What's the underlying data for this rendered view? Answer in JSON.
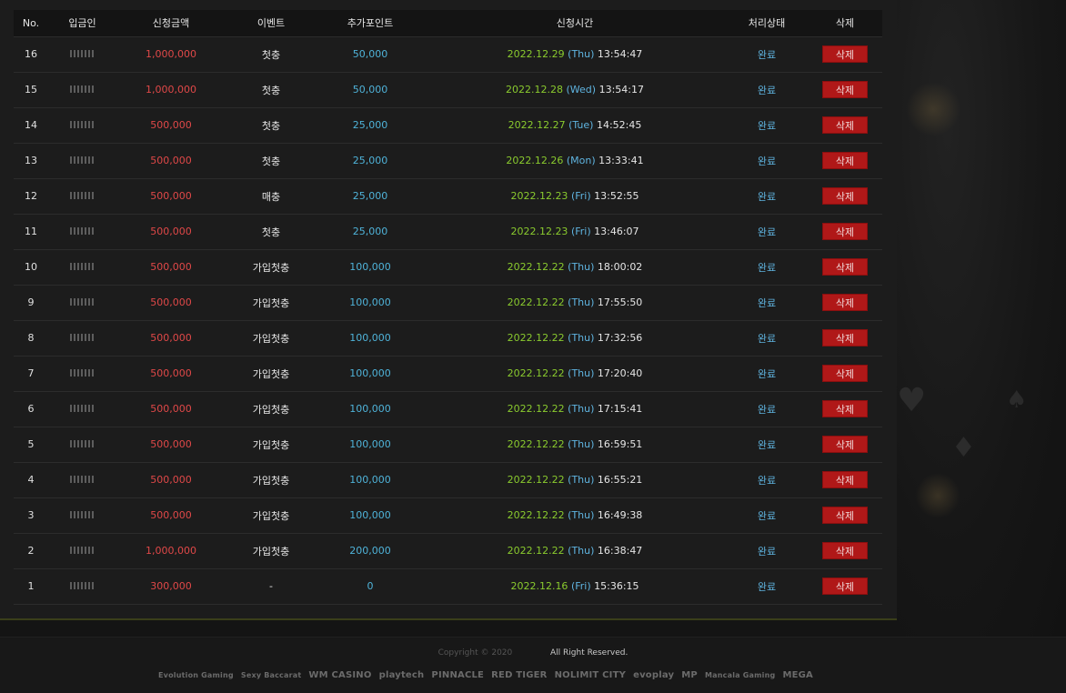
{
  "table": {
    "headers": {
      "no": "No.",
      "depositor": "입금인",
      "amount": "신청금액",
      "event": "이벤트",
      "bonus": "추가포인트",
      "requested_at": "신청시간",
      "status": "처리상태",
      "delete": "삭제"
    },
    "rows": [
      {
        "no": "16",
        "amount": "1,000,000",
        "event": "첫충",
        "bonus": "50,000",
        "date": "2022.12.29",
        "day": "(Thu)",
        "time": "13:54:47",
        "status": "완료",
        "delete": "삭제"
      },
      {
        "no": "15",
        "amount": "1,000,000",
        "event": "첫충",
        "bonus": "50,000",
        "date": "2022.12.28",
        "day": "(Wed)",
        "time": "13:54:17",
        "status": "완료",
        "delete": "삭제"
      },
      {
        "no": "14",
        "amount": "500,000",
        "event": "첫충",
        "bonus": "25,000",
        "date": "2022.12.27",
        "day": "(Tue)",
        "time": "14:52:45",
        "status": "완료",
        "delete": "삭제"
      },
      {
        "no": "13",
        "amount": "500,000",
        "event": "첫충",
        "bonus": "25,000",
        "date": "2022.12.26",
        "day": "(Mon)",
        "time": "13:33:41",
        "status": "완료",
        "delete": "삭제"
      },
      {
        "no": "12",
        "amount": "500,000",
        "event": "매충",
        "bonus": "25,000",
        "date": "2022.12.23",
        "day": "(Fri)",
        "time": "13:52:55",
        "status": "완료",
        "delete": "삭제"
      },
      {
        "no": "11",
        "amount": "500,000",
        "event": "첫충",
        "bonus": "25,000",
        "date": "2022.12.23",
        "day": "(Fri)",
        "time": "13:46:07",
        "status": "완료",
        "delete": "삭제"
      },
      {
        "no": "10",
        "amount": "500,000",
        "event": "가입첫충",
        "bonus": "100,000",
        "date": "2022.12.22",
        "day": "(Thu)",
        "time": "18:00:02",
        "status": "완료",
        "delete": "삭제"
      },
      {
        "no": "9",
        "amount": "500,000",
        "event": "가입첫충",
        "bonus": "100,000",
        "date": "2022.12.22",
        "day": "(Thu)",
        "time": "17:55:50",
        "status": "완료",
        "delete": "삭제"
      },
      {
        "no": "8",
        "amount": "500,000",
        "event": "가입첫충",
        "bonus": "100,000",
        "date": "2022.12.22",
        "day": "(Thu)",
        "time": "17:32:56",
        "status": "완료",
        "delete": "삭제"
      },
      {
        "no": "7",
        "amount": "500,000",
        "event": "가입첫충",
        "bonus": "100,000",
        "date": "2022.12.22",
        "day": "(Thu)",
        "time": "17:20:40",
        "status": "완료",
        "delete": "삭제"
      },
      {
        "no": "6",
        "amount": "500,000",
        "event": "가입첫충",
        "bonus": "100,000",
        "date": "2022.12.22",
        "day": "(Thu)",
        "time": "17:15:41",
        "status": "완료",
        "delete": "삭제"
      },
      {
        "no": "5",
        "amount": "500,000",
        "event": "가입첫충",
        "bonus": "100,000",
        "date": "2022.12.22",
        "day": "(Thu)",
        "time": "16:59:51",
        "status": "완료",
        "delete": "삭제"
      },
      {
        "no": "4",
        "amount": "500,000",
        "event": "가입첫충",
        "bonus": "100,000",
        "date": "2022.12.22",
        "day": "(Thu)",
        "time": "16:55:21",
        "status": "완료",
        "delete": "삭제"
      },
      {
        "no": "3",
        "amount": "500,000",
        "event": "가입첫충",
        "bonus": "100,000",
        "date": "2022.12.22",
        "day": "(Thu)",
        "time": "16:49:38",
        "status": "완료",
        "delete": "삭제"
      },
      {
        "no": "2",
        "amount": "1,000,000",
        "event": "가입첫충",
        "bonus": "200,000",
        "date": "2022.12.22",
        "day": "(Thu)",
        "time": "16:38:47",
        "status": "완료",
        "delete": "삭제"
      },
      {
        "no": "1",
        "amount": "300,000",
        "event": "-",
        "bonus": "0",
        "date": "2022.12.16",
        "day": "(Fri)",
        "time": "15:36:15",
        "status": "완료",
        "delete": "삭제"
      }
    ]
  },
  "footer": {
    "copyright": "Copyright © 2020",
    "rights": "All Right Reserved.",
    "providers": [
      "Evolution Gaming",
      "Sexy Baccarat",
      "WM CASINO",
      "playtech",
      "PINNACLE",
      "RED TIGER",
      "NOLIMIT CITY",
      "evoplay",
      "MP",
      "Mancala Gaming",
      "MEGA"
    ]
  },
  "colors": {
    "amount": "#e04848",
    "bonus": "#4fb3d9",
    "date": "#8acb2e",
    "day": "#5fb4e0",
    "status": "#5fb4e0",
    "delete_button": "#b01818"
  }
}
